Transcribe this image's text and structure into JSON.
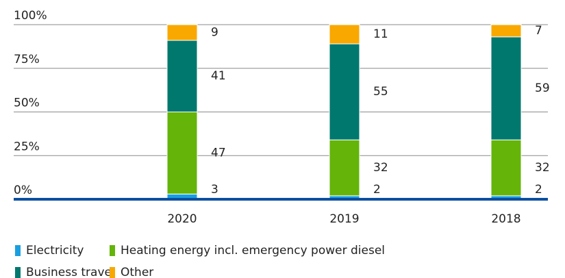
{
  "chart_data": {
    "type": "stacked_bar",
    "categories": [
      "2020",
      "2019",
      "2018"
    ],
    "series": [
      {
        "name": "Electricity",
        "color": "#1a9ee0",
        "values": [
          3,
          2,
          2
        ]
      },
      {
        "name": "Heating energy incl. emergency power diesel",
        "color": "#64b40a",
        "values": [
          47,
          32,
          32
        ]
      },
      {
        "name": "Business travel",
        "color": "#00786e",
        "values": [
          41,
          55,
          59
        ]
      },
      {
        "name": "Other",
        "color": "#f9a800",
        "values": [
          9,
          11,
          7
        ]
      }
    ],
    "ylim": [
      0,
      100
    ],
    "yticks": [
      {
        "value": 0,
        "label": "0%"
      },
      {
        "value": 25,
        "label": "25%"
      },
      {
        "value": 50,
        "label": "50%"
      },
      {
        "value": 75,
        "label": "75%"
      },
      {
        "value": 100,
        "label": "100%"
      }
    ],
    "grid": true
  }
}
